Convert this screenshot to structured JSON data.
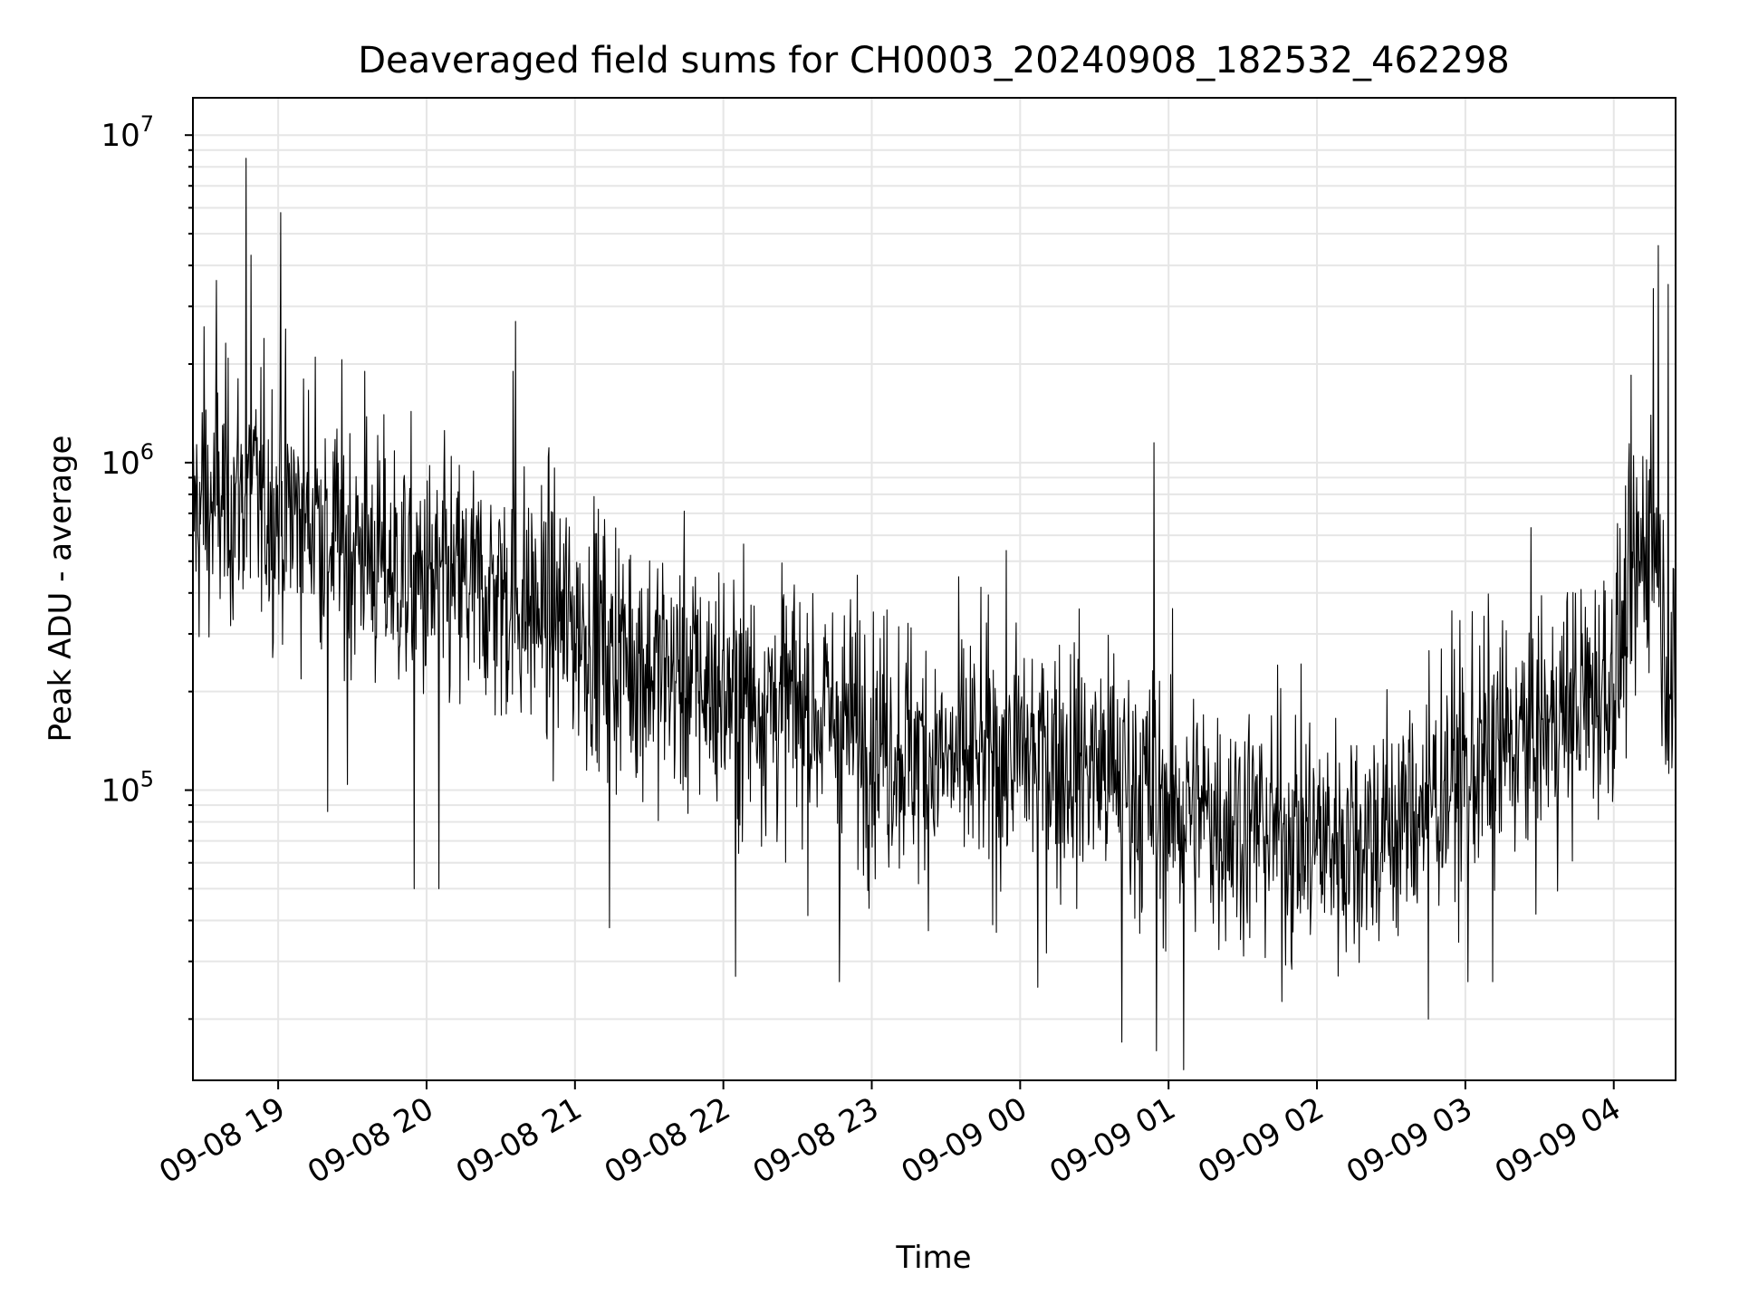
{
  "chart_data": {
    "type": "line",
    "title": "Deaveraged field sums for CH0003_20240908_182532_462298",
    "xlabel": "Time",
    "ylabel": "Peak ADU - average",
    "y_scale": "log",
    "ylim": [
      13000,
      13000000
    ],
    "xlim": [
      "2024-09-08 18:25:32",
      "2024-09-09 04:25:00"
    ],
    "grid": true,
    "line_color": "#000000",
    "grid_color": "#e6e6e6",
    "y_ticks": [
      {
        "value": 100000,
        "base": "10",
        "exp": "5"
      },
      {
        "value": 1000000,
        "base": "10",
        "exp": "6"
      },
      {
        "value": 10000000,
        "base": "10",
        "exp": "7"
      }
    ],
    "x_ticks": [
      {
        "value": "2024-09-08 19:00",
        "label": "09-08 19"
      },
      {
        "value": "2024-09-08 20:00",
        "label": "09-08 20"
      },
      {
        "value": "2024-09-08 21:00",
        "label": "09-08 21"
      },
      {
        "value": "2024-09-08 22:00",
        "label": "09-08 22"
      },
      {
        "value": "2024-09-08 23:00",
        "label": "09-08 23"
      },
      {
        "value": "2024-09-09 00:00",
        "label": "09-09 00"
      },
      {
        "value": "2024-09-09 01:00",
        "label": "09-09 01"
      },
      {
        "value": "2024-09-09 02:00",
        "label": "09-09 02"
      },
      {
        "value": "2024-09-09 03:00",
        "label": "09-09 03"
      },
      {
        "value": "2024-09-09 04:00",
        "label": "09-09 04"
      }
    ],
    "series": [
      {
        "trend": [
          [
            "2024-09-08 18:25",
            700000
          ],
          [
            "2024-09-08 18:45",
            800000
          ],
          [
            "2024-09-08 19:10",
            700000
          ],
          [
            "2024-09-08 19:40",
            500000
          ],
          [
            "2024-09-08 20:00",
            420000
          ],
          [
            "2024-09-08 20:30",
            400000
          ],
          [
            "2024-09-08 21:00",
            320000
          ],
          [
            "2024-09-08 21:30",
            240000
          ],
          [
            "2024-09-08 22:00",
            200000
          ],
          [
            "2024-09-08 22:30",
            180000
          ],
          [
            "2024-09-08 23:00",
            150000
          ],
          [
            "2024-09-08 23:30",
            120000
          ],
          [
            "2024-09-09 00:00",
            130000
          ],
          [
            "2024-09-09 00:30",
            120000
          ],
          [
            "2024-09-09 01:00",
            90000
          ],
          [
            "2024-09-09 01:30",
            80000
          ],
          [
            "2024-09-09 02:00",
            70000
          ],
          [
            "2024-09-09 02:30",
            75000
          ],
          [
            "2024-09-09 03:00",
            120000
          ],
          [
            "2024-09-09 03:30",
            150000
          ],
          [
            "2024-09-09 04:00",
            220000
          ],
          [
            "2024-09-09 04:15",
            700000
          ],
          [
            "2024-09-09 04:25",
            150000
          ]
        ],
        "spikes": [
          [
            "2024-09-08 18:47",
            8500000
          ],
          [
            "2024-09-08 18:49",
            4300000
          ],
          [
            "2024-09-08 19:01",
            5800000
          ],
          [
            "2024-09-08 18:30",
            2600000
          ],
          [
            "2024-09-08 18:35",
            3600000
          ],
          [
            "2024-09-08 19:15",
            2100000
          ],
          [
            "2024-09-08 19:35",
            1900000
          ],
          [
            "2024-09-08 20:36",
            2700000
          ],
          [
            "2024-09-08 20:35",
            1900000
          ],
          [
            "2024-09-09 00:54",
            1150000
          ],
          [
            "2024-09-09 04:07",
            1850000
          ],
          [
            "2024-09-09 04:18",
            4600000
          ],
          [
            "2024-09-09 04:16",
            3400000
          ],
          [
            "2024-09-09 04:22",
            3500000
          ],
          [
            "2024-09-08 19:28",
            104000
          ],
          [
            "2024-09-08 19:20",
            86000
          ],
          [
            "2024-09-08 19:55",
            50000
          ],
          [
            "2024-09-08 20:05",
            50000
          ],
          [
            "2024-09-08 21:14",
            38000
          ],
          [
            "2024-09-08 22:05",
            27000
          ],
          [
            "2024-09-08 22:47",
            26000
          ],
          [
            "2024-09-09 00:07",
            25000
          ],
          [
            "2024-09-09 00:41",
            17000
          ],
          [
            "2024-09-09 00:55",
            16000
          ],
          [
            "2024-09-09 01:06",
            14000
          ],
          [
            "2024-09-09 02:45",
            20000
          ],
          [
            "2024-09-09 03:01",
            26000
          ],
          [
            "2024-09-09 03:11",
            26000
          ]
        ]
      }
    ]
  }
}
